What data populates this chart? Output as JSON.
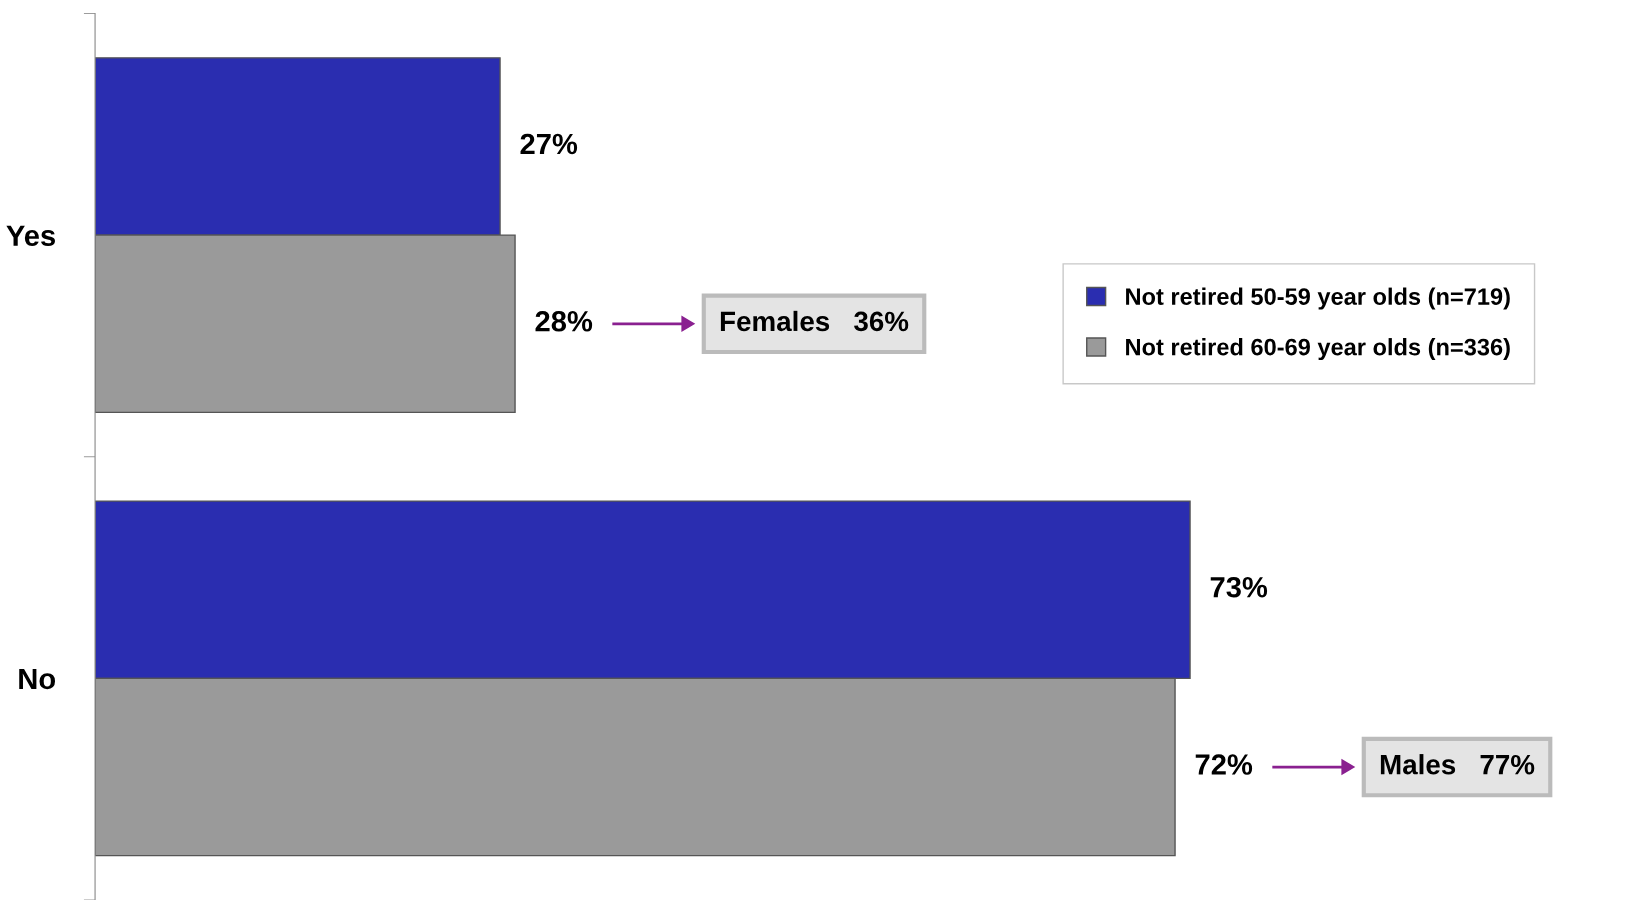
{
  "chart_data": {
    "type": "bar",
    "orientation": "horizontal",
    "categories": [
      "Yes",
      "No"
    ],
    "series": [
      {
        "name": "Not retired 50-59 year olds (n=719)",
        "color": "#2a2db0",
        "values": [
          27,
          73
        ],
        "value_labels": [
          "27%",
          "73%"
        ]
      },
      {
        "name": "Not retired 60-69 year olds (n=336)",
        "color": "#9a9a9a",
        "values": [
          28,
          72
        ],
        "value_labels": [
          "28%",
          "72%"
        ]
      }
    ],
    "tick_labels": "y",
    "legend": "right",
    "grid": false,
    "annotations": [
      "Females   36%",
      "Males   77%"
    ]
  }
}
